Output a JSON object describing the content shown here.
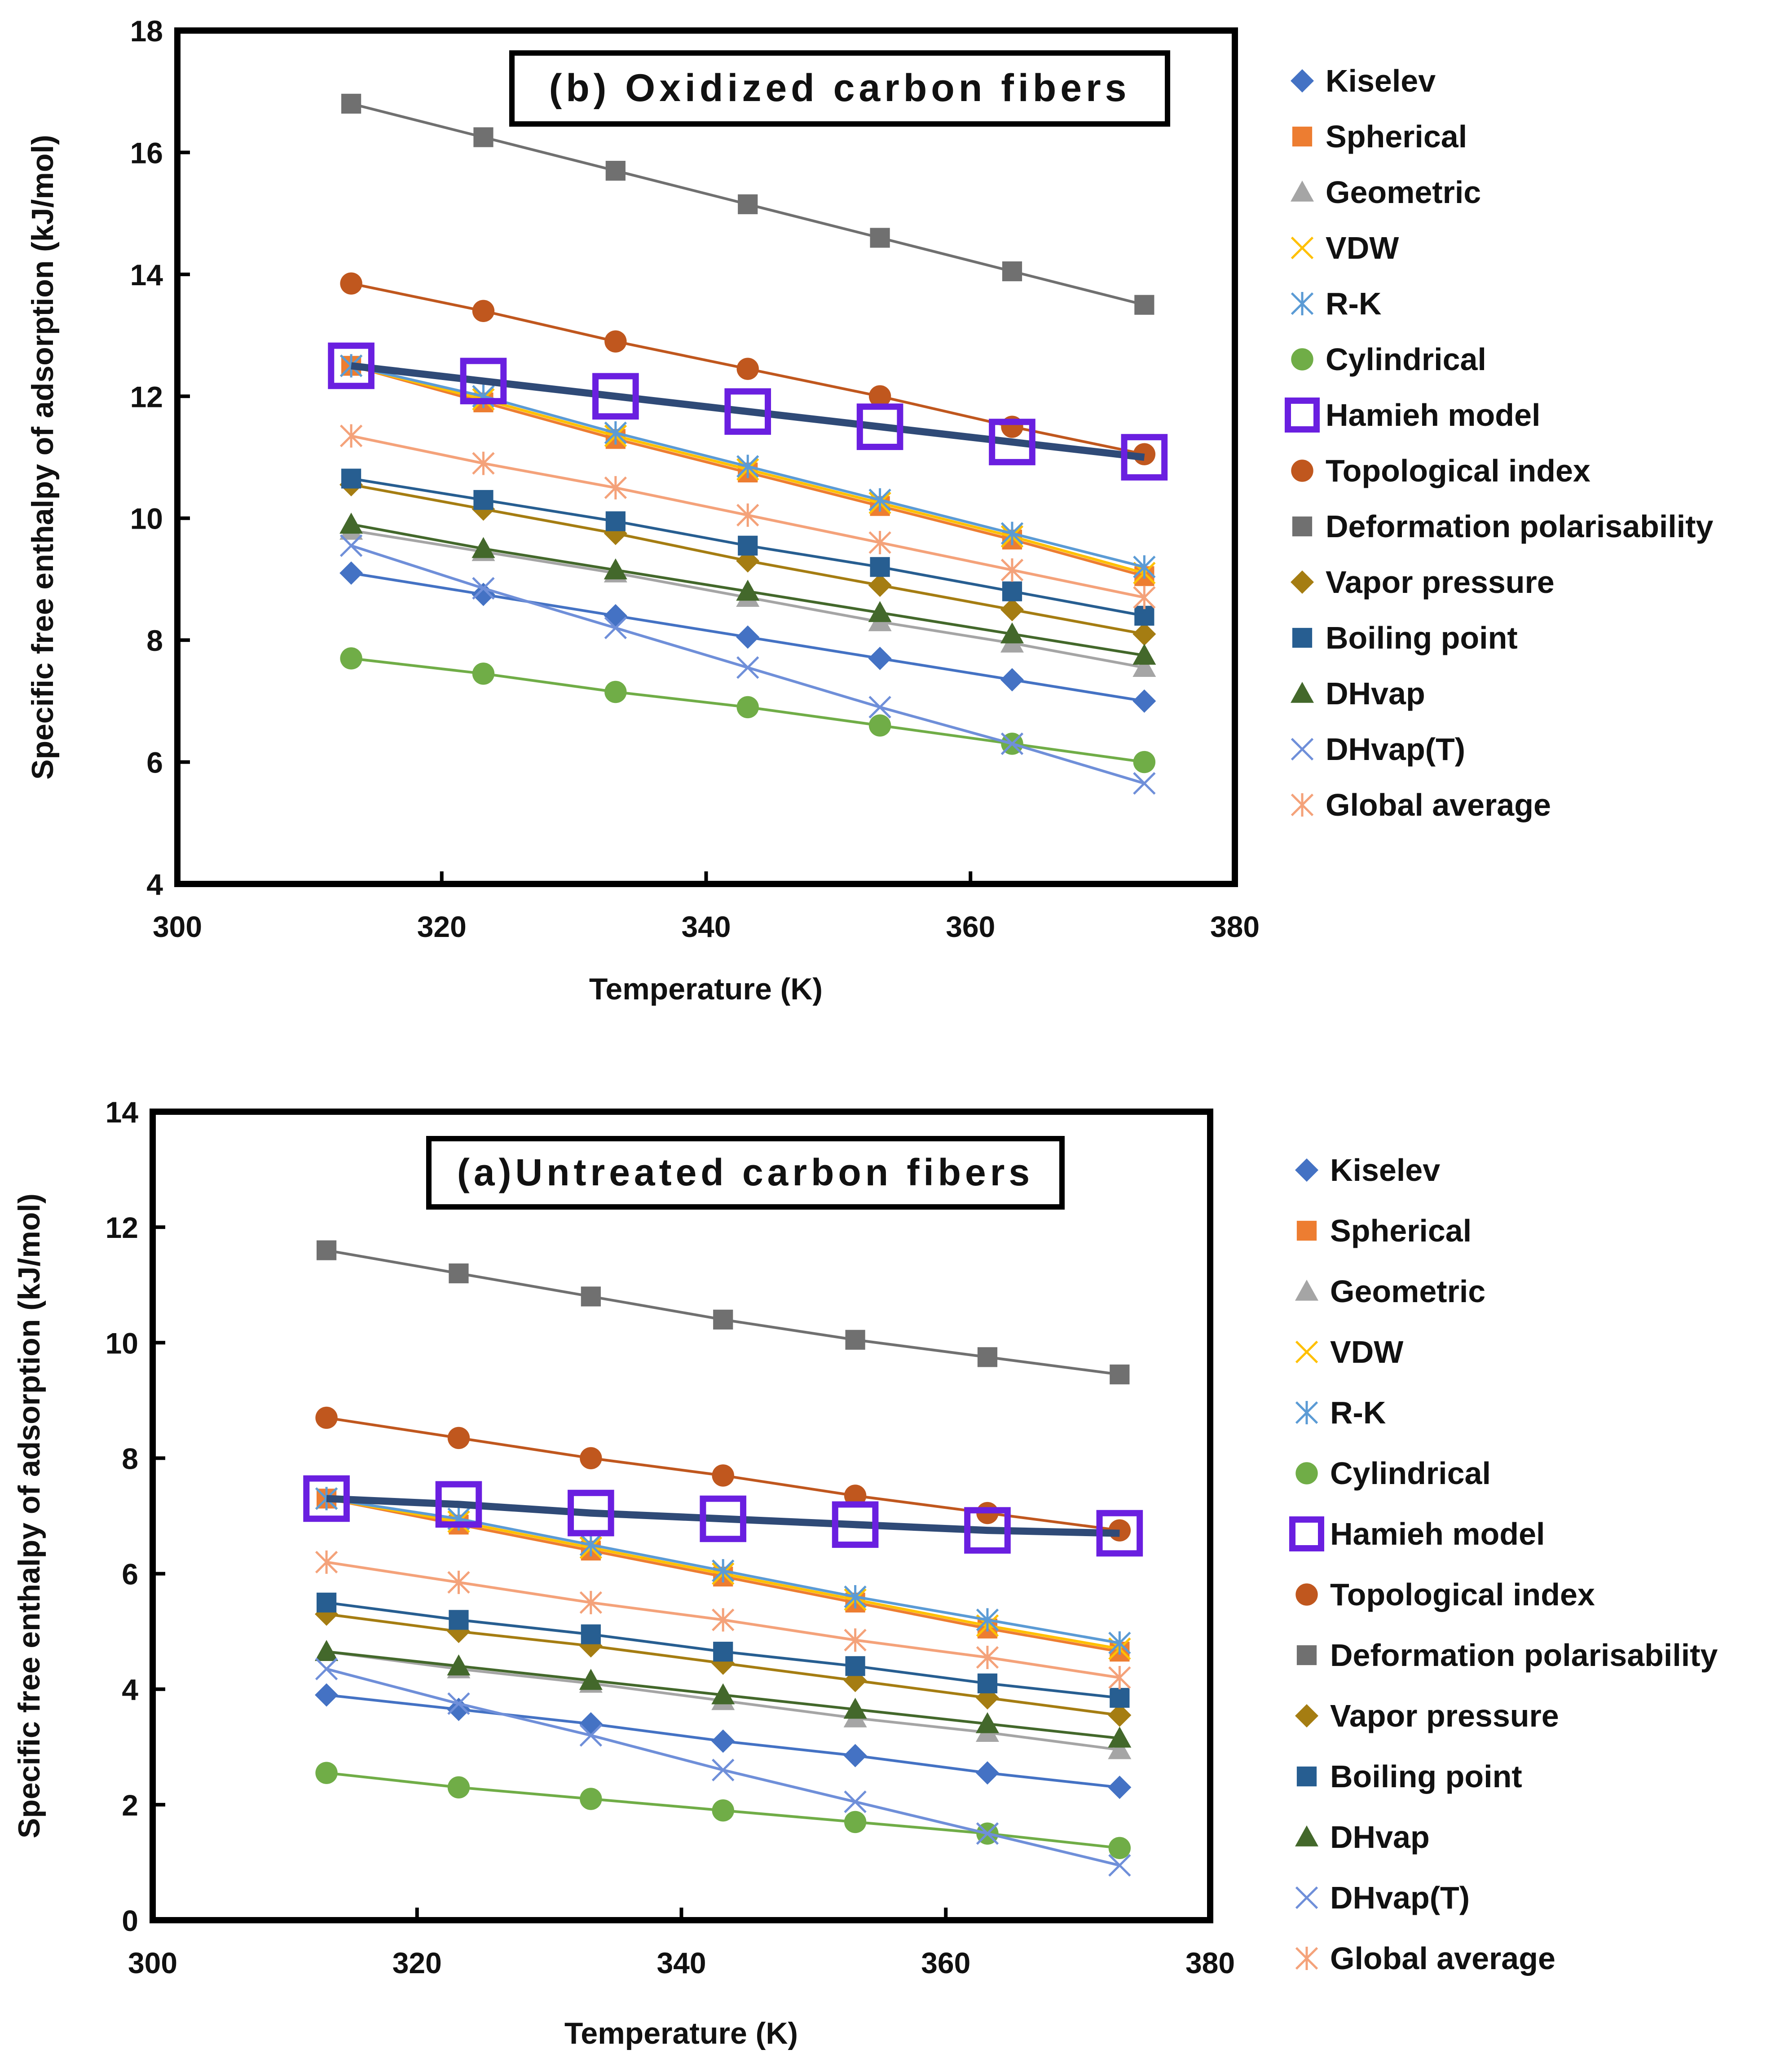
{
  "chart_data": [
    {
      "id": "b",
      "type": "line",
      "title": "(b) Oxidized carbon fibers",
      "xlabel": "Temperature (K)",
      "ylabel": "Specific free enthalpy of adsorption (kJ/mol)",
      "xlim": [
        300,
        380
      ],
      "ylim": [
        4,
        18
      ],
      "xticks": [
        300,
        320,
        340,
        360,
        380
      ],
      "yticks": [
        4,
        6,
        8,
        10,
        12,
        14,
        16,
        18
      ],
      "legend_position": "right",
      "x": [
        313.15,
        323.15,
        333.15,
        343.15,
        353.15,
        363.15,
        373.15
      ],
      "series": [
        {
          "name": "Kiselev",
          "marker": "diamond",
          "color": "#4472C4",
          "values": [
            9.1,
            8.75,
            8.4,
            8.05,
            7.7,
            7.35,
            7.0
          ]
        },
        {
          "name": "Spherical",
          "marker": "square",
          "color": "#ED7D31",
          "values": [
            12.5,
            11.9,
            11.3,
            10.75,
            10.2,
            9.65,
            9.05
          ]
        },
        {
          "name": "Geometric",
          "marker": "triangle",
          "color": "#A5A5A5",
          "values": [
            9.8,
            9.45,
            9.1,
            8.7,
            8.3,
            7.95,
            7.55
          ]
        },
        {
          "name": "VDW",
          "marker": "x",
          "color": "#FFC000",
          "values": [
            12.5,
            11.95,
            11.35,
            10.8,
            10.25,
            9.7,
            9.1
          ]
        },
        {
          "name": "R-K",
          "marker": "star",
          "color": "#5B9BD5",
          "values": [
            12.5,
            12.0,
            11.4,
            10.85,
            10.3,
            9.75,
            9.2
          ]
        },
        {
          "name": "Cylindrical",
          "marker": "circle",
          "color": "#70AD47",
          "values": [
            7.7,
            7.45,
            7.15,
            6.9,
            6.6,
            6.3,
            6.0
          ]
        },
        {
          "name": "Hamieh model",
          "marker": "hollow-square",
          "color": "#6A1FE0",
          "line_color": "#2F4A77",
          "values": [
            12.5,
            12.25,
            12.0,
            11.75,
            11.5,
            11.25,
            11.0
          ]
        },
        {
          "name": "Topological index",
          "marker": "circle",
          "color": "#C0571E",
          "values": [
            13.85,
            13.4,
            12.9,
            12.45,
            12.0,
            11.5,
            11.05
          ]
        },
        {
          "name": "Deformation polarisability",
          "marker": "square",
          "color": "#707070",
          "values": [
            16.8,
            16.25,
            15.7,
            15.15,
            14.6,
            14.05,
            13.5
          ]
        },
        {
          "name": "Vapor pressure",
          "marker": "diamond",
          "color": "#A57D12",
          "values": [
            10.55,
            10.15,
            9.75,
            9.3,
            8.9,
            8.5,
            8.1
          ]
        },
        {
          "name": "Boiling point",
          "marker": "square",
          "color": "#275E91",
          "values": [
            10.65,
            10.3,
            9.95,
            9.55,
            9.2,
            8.8,
            8.4
          ]
        },
        {
          "name": "DHvap",
          "marker": "triangle",
          "color": "#43682B",
          "values": [
            9.9,
            9.5,
            9.15,
            8.8,
            8.45,
            8.1,
            7.75
          ]
        },
        {
          "name": "DHvap(T)",
          "marker": "x",
          "color": "#6F8FD9",
          "values": [
            9.55,
            8.85,
            8.2,
            7.55,
            6.9,
            6.3,
            5.65
          ]
        },
        {
          "name": "Global average",
          "marker": "star",
          "color": "#F4A27A",
          "values": [
            11.35,
            10.9,
            10.5,
            10.05,
            9.6,
            9.15,
            8.7
          ]
        }
      ]
    },
    {
      "id": "a",
      "type": "line",
      "title": "(a)Untreated carbon fibers",
      "xlabel": "Temperature (K)",
      "ylabel": "Specific free enthalpy of adsorption (kJ/mol)",
      "xlim": [
        300,
        380
      ],
      "ylim": [
        0,
        14
      ],
      "xticks": [
        300,
        320,
        340,
        360,
        380
      ],
      "yticks": [
        0,
        2,
        4,
        6,
        8,
        10,
        12,
        14
      ],
      "legend_position": "right",
      "x": [
        313.15,
        323.15,
        333.15,
        343.15,
        353.15,
        363.15,
        373.15
      ],
      "series": [
        {
          "name": "Kiselev",
          "marker": "diamond",
          "color": "#4472C4",
          "values": [
            3.9,
            3.65,
            3.4,
            3.1,
            2.85,
            2.55,
            2.3
          ]
        },
        {
          "name": "Spherical",
          "marker": "square",
          "color": "#ED7D31",
          "values": [
            7.3,
            6.85,
            6.4,
            5.95,
            5.5,
            5.05,
            4.65
          ]
        },
        {
          "name": "Geometric",
          "marker": "triangle",
          "color": "#A5A5A5",
          "values": [
            4.65,
            4.35,
            4.1,
            3.8,
            3.5,
            3.25,
            2.95
          ]
        },
        {
          "name": "VDW",
          "marker": "x",
          "color": "#FFC000",
          "values": [
            7.3,
            6.9,
            6.45,
            6.0,
            5.55,
            5.1,
            4.7
          ]
        },
        {
          "name": "R-K",
          "marker": "star",
          "color": "#5B9BD5",
          "values": [
            7.3,
            6.95,
            6.5,
            6.05,
            5.6,
            5.2,
            4.8
          ]
        },
        {
          "name": "Cylindrical",
          "marker": "circle",
          "color": "#70AD47",
          "values": [
            2.55,
            2.3,
            2.1,
            1.9,
            1.7,
            1.5,
            1.25
          ]
        },
        {
          "name": "Hamieh model",
          "marker": "hollow-square",
          "color": "#6A1FE0",
          "line_color": "#2F4A77",
          "values": [
            7.3,
            7.2,
            7.05,
            6.95,
            6.85,
            6.75,
            6.7
          ]
        },
        {
          "name": "Topological index",
          "marker": "circle",
          "color": "#C0571E",
          "values": [
            8.7,
            8.35,
            8.0,
            7.7,
            7.35,
            7.05,
            6.75
          ]
        },
        {
          "name": "Deformation polarisability",
          "marker": "square",
          "color": "#707070",
          "values": [
            11.6,
            11.2,
            10.8,
            10.4,
            10.05,
            9.75,
            9.45
          ]
        },
        {
          "name": "Vapor pressure",
          "marker": "diamond",
          "color": "#A57D12",
          "values": [
            5.3,
            5.0,
            4.75,
            4.45,
            4.15,
            3.85,
            3.55
          ]
        },
        {
          "name": "Boiling point",
          "marker": "square",
          "color": "#275E91",
          "values": [
            5.5,
            5.2,
            4.95,
            4.65,
            4.4,
            4.1,
            3.85
          ]
        },
        {
          "name": "DHvap",
          "marker": "triangle",
          "color": "#43682B",
          "values": [
            4.65,
            4.4,
            4.15,
            3.9,
            3.65,
            3.4,
            3.15
          ]
        },
        {
          "name": "DHvap(T)",
          "marker": "x",
          "color": "#6F8FD9",
          "values": [
            4.35,
            3.75,
            3.2,
            2.6,
            2.05,
            1.5,
            0.95
          ]
        },
        {
          "name": "Global average",
          "marker": "star",
          "color": "#F4A27A",
          "values": [
            6.2,
            5.85,
            5.5,
            5.2,
            4.85,
            4.55,
            4.2
          ]
        }
      ]
    }
  ]
}
